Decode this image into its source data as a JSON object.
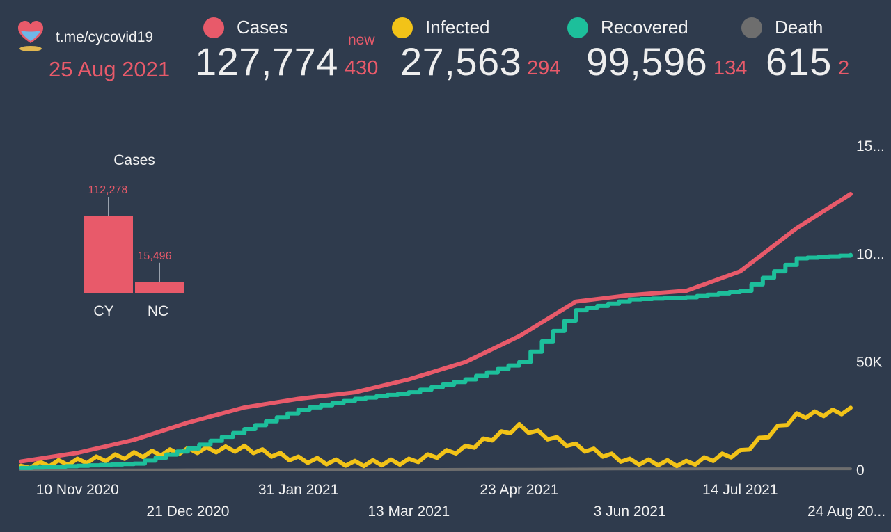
{
  "header": {
    "channel": "t.me/cycovid19",
    "date": "25 Aug 2021",
    "new_label": "new",
    "icon": "cyprus-heart-logo-icon"
  },
  "stats": {
    "cases": {
      "label": "Cases",
      "total": "127,774",
      "new": "430",
      "color": "#e85a6a"
    },
    "infected": {
      "label": "Infected",
      "total": "27,563",
      "new": "294",
      "color": "#f2c318"
    },
    "recovered": {
      "label": "Recovered",
      "total": "99,596",
      "new": "134",
      "color": "#1dbf9b"
    },
    "death": {
      "label": "Death",
      "total": "615",
      "new": "2",
      "color": "#6e6e6e"
    }
  },
  "chart_data": [
    {
      "type": "line",
      "x_tick_labels": [
        "10 Nov 2020",
        "21 Dec 2020",
        "31 Jan 2021",
        "13 Mar 2021",
        "23 Apr 2021",
        "3 Jun 2021",
        "14 Jul 2021",
        "24 Aug 20..."
      ],
      "y_tick_labels": [
        "0",
        "50K",
        "10...",
        "15..."
      ],
      "ylim": [
        0,
        150000
      ],
      "x": [
        "2020-10-20",
        "2020-11-10",
        "2020-12-01",
        "2020-12-21",
        "2021-01-11",
        "2021-01-31",
        "2021-02-21",
        "2021-03-13",
        "2021-04-03",
        "2021-04-23",
        "2021-05-14",
        "2021-06-03",
        "2021-06-24",
        "2021-07-14",
        "2021-08-04",
        "2021-08-24"
      ],
      "series": [
        {
          "name": "Cases",
          "color": "#e85a6a",
          "values": [
            4000,
            8000,
            14000,
            22000,
            29000,
            33000,
            36000,
            42000,
            50000,
            62000,
            78000,
            81000,
            83000,
            92000,
            112000,
            127774
          ]
        },
        {
          "name": "Infected",
          "color": "#f2c318",
          "values": [
            2000,
            4000,
            7000,
            9000,
            10000,
            5000,
            3000,
            4000,
            10000,
            20000,
            11000,
            4000,
            3000,
            8000,
            25000,
            27563
          ]
        },
        {
          "name": "Recovered",
          "color": "#1dbf9b",
          "values": [
            1000,
            2000,
            3000,
            10000,
            19000,
            28000,
            33000,
            36000,
            42000,
            50000,
            74000,
            79000,
            80000,
            83000,
            98000,
            99596
          ]
        },
        {
          "name": "Death",
          "color": "#6e6e6e",
          "values": [
            30,
            60,
            100,
            150,
            200,
            230,
            250,
            300,
            350,
            400,
            500,
            560,
            580,
            590,
            605,
            615
          ]
        }
      ]
    },
    {
      "type": "bar",
      "title": "Cases",
      "categories": [
        "CY",
        "NC"
      ],
      "values": [
        112278,
        15496
      ],
      "value_labels": [
        "112,278",
        "15,496"
      ],
      "color": "#e85a6a"
    }
  ]
}
